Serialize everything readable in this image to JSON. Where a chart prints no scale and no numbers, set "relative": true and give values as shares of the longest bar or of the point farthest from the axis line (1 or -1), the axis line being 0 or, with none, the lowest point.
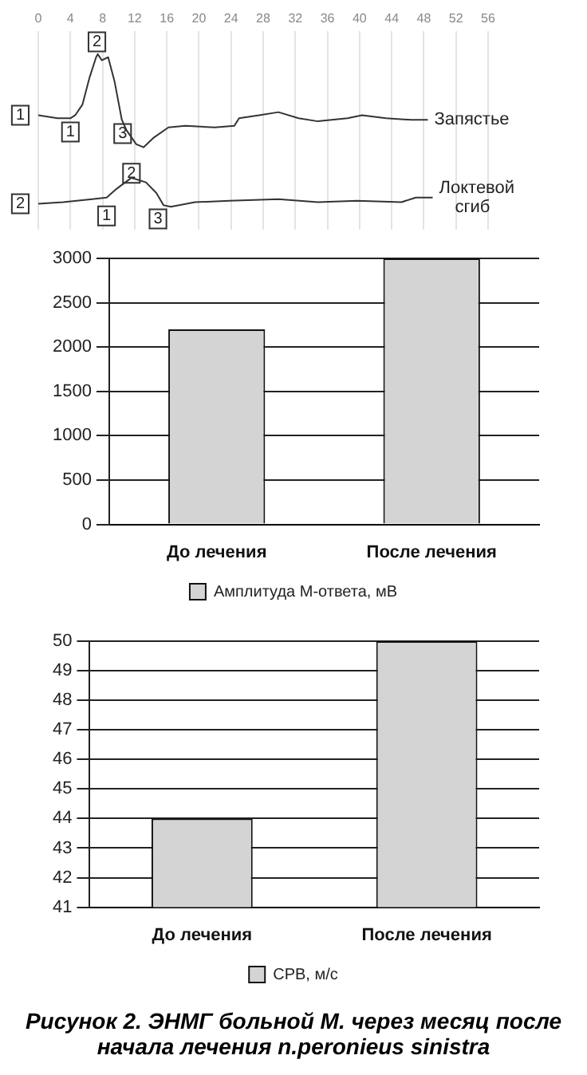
{
  "chart_data": [
    {
      "type": "line",
      "relative": true,
      "xlim": [
        0,
        56
      ],
      "xticks": [
        0,
        4,
        8,
        12,
        16,
        20,
        24,
        28,
        32,
        36,
        40,
        44,
        48,
        52,
        56
      ],
      "grid": "x",
      "marker": "none",
      "line_style": "solid",
      "series": [
        {
          "name": "Запястье",
          "color": "#333333",
          "x": [
            0,
            2.4,
            4.0,
            4.6,
            5.5,
            6.4,
            7.2,
            7.4,
            7.9,
            8.7,
            9.5,
            10.4,
            11.0,
            12.2,
            13.1,
            14.3,
            16.2,
            18.3,
            22.0,
            24.4,
            25.0,
            27.5,
            29.9,
            32.4,
            34.8,
            38.5,
            40.3,
            43.3,
            46.4,
            48.5
          ],
          "values": [
            0.6,
            0.58,
            0.58,
            0.6,
            0.67,
            0.85,
            0.98,
            1.0,
            0.96,
            0.98,
            0.82,
            0.57,
            0.5,
            0.41,
            0.39,
            0.45,
            0.52,
            0.53,
            0.52,
            0.53,
            0.58,
            0.6,
            0.62,
            0.58,
            0.56,
            0.58,
            0.6,
            0.58,
            0.57,
            0.57
          ]
        },
        {
          "name": "Локтевой сгиб",
          "color": "#333333",
          "x": [
            0,
            3.1,
            6.7,
            8.5,
            9.8,
            11.6,
            13.4,
            14.7,
            15.6,
            16.5,
            19.5,
            23.8,
            29.9,
            34.8,
            39.7,
            45.2,
            47.0,
            49.1
          ],
          "values": [
            0.02,
            0.03,
            0.05,
            0.06,
            0.12,
            0.19,
            0.16,
            0.09,
            0.01,
            0,
            0.03,
            0.04,
            0.05,
            0.03,
            0.04,
            0.03,
            0.06,
            0.06
          ]
        }
      ],
      "annotations": [
        {
          "text": "1",
          "x": 0,
          "y": 0.6
        },
        {
          "text": "2",
          "x": 0,
          "y": 0.02
        },
        {
          "text": "1",
          "x": 4.0,
          "y": 0.49
        },
        {
          "text": "2",
          "x": 7.3,
          "y": 1.08
        },
        {
          "text": "3",
          "x": 10.5,
          "y": 0.48
        },
        {
          "text": "1",
          "x": 8.5,
          "y": -0.06
        },
        {
          "text": "2",
          "x": 11.6,
          "y": 0.22
        },
        {
          "text": "3",
          "x": 14.9,
          "y": -0.08
        }
      ]
    },
    {
      "type": "bar",
      "categories": [
        "До лечения",
        "После лечения"
      ],
      "ylim": [
        0,
        3000
      ],
      "yticks": [
        0,
        500,
        1000,
        1500,
        2000,
        2500,
        3000
      ],
      "grid": "y",
      "legend": "bottom",
      "series": [
        {
          "name": "Амплитуда М-ответа, мВ",
          "color": "#d4d4d4",
          "values": [
            2200,
            3000
          ]
        }
      ]
    },
    {
      "type": "bar",
      "categories": [
        "До лечения",
        "После лечения"
      ],
      "ylim": [
        41,
        50
      ],
      "yticks": [
        41,
        42,
        43,
        44,
        45,
        46,
        47,
        48,
        49,
        50
      ],
      "grid": "y",
      "legend": "bottom",
      "series": [
        {
          "name": "СРВ, м/с",
          "color": "#d4d4d4",
          "values": [
            44,
            50
          ]
        }
      ],
      "annotations": [
        "Рисунок 2. ЭНМГ больной М. через месяц после начала лечения n.peronieus sinistra"
      ]
    }
  ]
}
